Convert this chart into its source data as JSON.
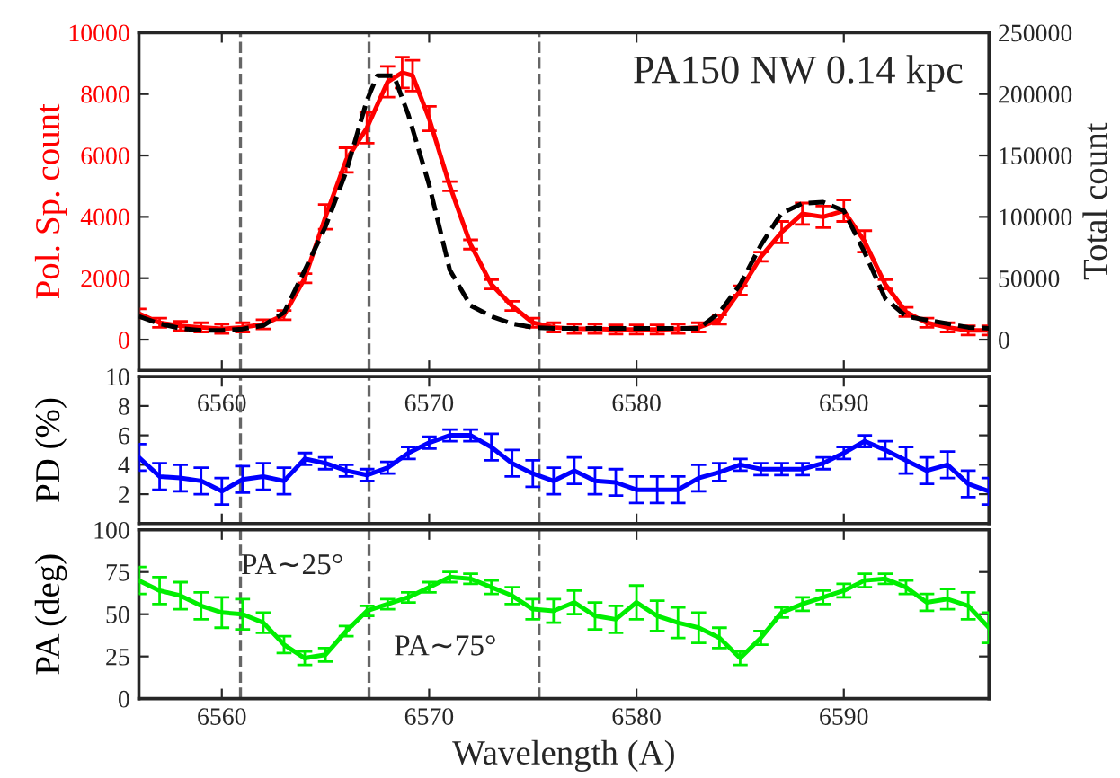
{
  "chart_data": [
    {
      "type": "line",
      "ylabel": "Pol. Sp. count",
      "y2label": "Total count",
      "xlim": [
        6556,
        6597
      ],
      "xticks": [
        6560,
        6570,
        6580,
        6590
      ],
      "ylim": [
        -1000,
        10000
      ],
      "yticks": [
        0,
        2000,
        4000,
        6000,
        8000,
        10000
      ],
      "y2lim": [
        -25000,
        250000
      ],
      "y2ticks": [
        0,
        50000,
        100000,
        150000,
        200000,
        250000
      ],
      "tick_labels": "y",
      "grid": false,
      "legend": false,
      "annotations": [
        "PA150 NW 0.14 kpc"
      ],
      "ref_lines": [
        {
          "axis": "x",
          "value": 6560.9,
          "color": "#666666",
          "line_style": "dashed"
        },
        {
          "axis": "x",
          "value": 6567.1,
          "color": "#666666",
          "line_style": "dashed"
        },
        {
          "axis": "x",
          "value": 6575.3,
          "color": "#666666",
          "line_style": "dashed"
        }
      ],
      "series": [
        {
          "color": "#ff0000",
          "line_style": "solid",
          "axis": "y",
          "x": [
            6556,
            6557,
            6558,
            6559,
            6560,
            6561,
            6562,
            6563,
            6564,
            6565,
            6566,
            6567,
            6568,
            6568.7,
            6569.2,
            6570,
            6571,
            6572,
            6573,
            6574,
            6575,
            6576,
            6577,
            6578,
            6579,
            6580,
            6581,
            6582,
            6583,
            6584,
            6585,
            6586,
            6587,
            6588,
            6589,
            6590,
            6591,
            6592,
            6593,
            6594,
            6595,
            6596,
            6597
          ],
          "values": [
            850,
            550,
            450,
            400,
            350,
            400,
            500,
            800,
            2000,
            4000,
            5850,
            6900,
            8400,
            8700,
            8600,
            7200,
            5000,
            3100,
            1800,
            1100,
            550,
            400,
            350,
            350,
            330,
            330,
            330,
            350,
            400,
            650,
            1600,
            2700,
            3500,
            4100,
            4000,
            4200,
            3200,
            1800,
            900,
            550,
            400,
            300,
            300
          ],
          "errors": [
            150,
            150,
            150,
            150,
            150,
            150,
            150,
            150,
            150,
            400,
            400,
            500,
            500,
            500,
            500,
            400,
            150,
            150,
            150,
            150,
            150,
            150,
            150,
            150,
            150,
            150,
            150,
            150,
            150,
            150,
            150,
            150,
            350,
            350,
            350,
            350,
            350,
            150,
            150,
            150,
            150,
            150,
            150
          ]
        },
        {
          "color": "#000000",
          "line_style": "dashed",
          "axis": "y2",
          "x": [
            6556,
            6557,
            6558,
            6559,
            6560,
            6561,
            6562,
            6563,
            6564,
            6565,
            6566,
            6567,
            6567.5,
            6568.3,
            6569,
            6570,
            6571,
            6572,
            6573,
            6574,
            6575,
            6576,
            6577,
            6578,
            6579,
            6580,
            6581,
            6582,
            6583,
            6584,
            6585,
            6586,
            6587,
            6588,
            6589,
            6590,
            6591,
            6592,
            6593,
            6594,
            6595,
            6596,
            6597
          ],
          "values": [
            19000,
            13000,
            9200,
            7500,
            7500,
            8700,
            11500,
            22000,
            56500,
            92000,
            137000,
            195000,
            215000,
            215000,
            183000,
            126000,
            56500,
            27700,
            19000,
            13000,
            10000,
            9200,
            9200,
            9200,
            9200,
            9200,
            9200,
            9200,
            9200,
            22000,
            45000,
            77000,
            103000,
            111000,
            112000,
            105000,
            71000,
            33500,
            19000,
            16000,
            13000,
            10000,
            9200
          ]
        }
      ]
    },
    {
      "type": "line",
      "ylabel": "PD (%)",
      "xlim": [
        6556,
        6597
      ],
      "xticks": [
        6560,
        6570,
        6580,
        6590
      ],
      "ylim": [
        0,
        10
      ],
      "yticks": [
        2,
        4,
        6,
        8,
        10
      ],
      "grid": false,
      "legend": false,
      "ref_lines": [
        {
          "axis": "x",
          "value": 6560.9,
          "color": "#666666",
          "line_style": "dashed"
        },
        {
          "axis": "x",
          "value": 6567.1,
          "color": "#666666",
          "line_style": "dashed"
        },
        {
          "axis": "x",
          "value": 6575.3,
          "color": "#666666",
          "line_style": "dashed"
        }
      ],
      "series": [
        {
          "color": "#0000ff",
          "line_style": "solid",
          "axis": "y",
          "x": [
            6556,
            6557,
            6558,
            6559,
            6560,
            6561,
            6562,
            6563,
            6564,
            6565,
            6566,
            6567,
            6568,
            6569,
            6570,
            6571,
            6572,
            6573,
            6574,
            6575,
            6576,
            6577,
            6578,
            6579,
            6580,
            6581,
            6582,
            6583,
            6584,
            6585,
            6586,
            6587,
            6588,
            6589,
            6590,
            6591,
            6592,
            6593,
            6594,
            6595,
            6596,
            6597
          ],
          "values": [
            4.5,
            3.2,
            3.1,
            2.9,
            2.2,
            3.0,
            3.2,
            2.9,
            4.4,
            4.1,
            3.6,
            3.3,
            3.8,
            4.8,
            5.5,
            6.0,
            6.0,
            5.2,
            4.1,
            3.4,
            2.9,
            3.6,
            2.9,
            2.8,
            2.3,
            2.3,
            2.3,
            3.1,
            3.5,
            4.0,
            3.7,
            3.7,
            3.7,
            4.1,
            4.8,
            5.6,
            5.0,
            4.3,
            3.6,
            4.0,
            2.7,
            2.2
          ],
          "errors": [
            0.9,
            0.9,
            0.9,
            0.9,
            0.9,
            0.9,
            0.9,
            0.9,
            0.4,
            0.4,
            0.4,
            0.4,
            0.4,
            0.4,
            0.4,
            0.4,
            0.4,
            0.9,
            0.9,
            0.9,
            0.9,
            0.9,
            0.9,
            0.9,
            0.9,
            0.9,
            0.9,
            0.9,
            0.6,
            0.4,
            0.4,
            0.4,
            0.4,
            0.4,
            0.4,
            0.4,
            0.6,
            0.9,
            0.9,
            0.9,
            0.9,
            0.9
          ]
        }
      ]
    },
    {
      "type": "line",
      "ylabel": "PA (deg)",
      "xlabel": "Wavelength (A)",
      "xlim": [
        6556,
        6597
      ],
      "xticks": [
        6560,
        6570,
        6580,
        6590
      ],
      "ylim": [
        0,
        100
      ],
      "yticks": [
        0,
        25,
        50,
        75,
        100
      ],
      "grid": false,
      "legend": false,
      "annotations": [
        "PA∼25°",
        "PA∼75°"
      ],
      "ref_lines": [
        {
          "axis": "x",
          "value": 6560.9,
          "color": "#666666",
          "line_style": "dashed"
        },
        {
          "axis": "x",
          "value": 6567.1,
          "color": "#666666",
          "line_style": "dashed"
        },
        {
          "axis": "x",
          "value": 6575.3,
          "color": "#666666",
          "line_style": "dashed"
        }
      ],
      "series": [
        {
          "color": "#00ee00",
          "line_style": "solid",
          "axis": "y",
          "x": [
            6556,
            6557,
            6558,
            6559,
            6560,
            6561,
            6562,
            6563,
            6564,
            6565,
            6566,
            6567,
            6568,
            6569,
            6570,
            6571,
            6572,
            6573,
            6574,
            6575,
            6576,
            6577,
            6578,
            6579,
            6580,
            6581,
            6582,
            6583,
            6584,
            6585,
            6586,
            6587,
            6588,
            6589,
            6590,
            6591,
            6592,
            6593,
            6594,
            6595,
            6596,
            6597
          ],
          "values": [
            70,
            64,
            61,
            55,
            51,
            50,
            45,
            32,
            24,
            26,
            40,
            52,
            56,
            60,
            66,
            72,
            71,
            66,
            61,
            53,
            52,
            57,
            49,
            47,
            57,
            49,
            45,
            42,
            36,
            24,
            36,
            51,
            56,
            60,
            64,
            70,
            71,
            66,
            57,
            59,
            55,
            42
          ],
          "errors": [
            8,
            8,
            8,
            8,
            9,
            9,
            6,
            5,
            4,
            4,
            3,
            3,
            3,
            3,
            3,
            3,
            3,
            4,
            5,
            6,
            7,
            7,
            8,
            8,
            10,
            9,
            9,
            9,
            6,
            4,
            4,
            3,
            4,
            4,
            4,
            4,
            3,
            4,
            5,
            6,
            8,
            9
          ]
        }
      ]
    }
  ]
}
